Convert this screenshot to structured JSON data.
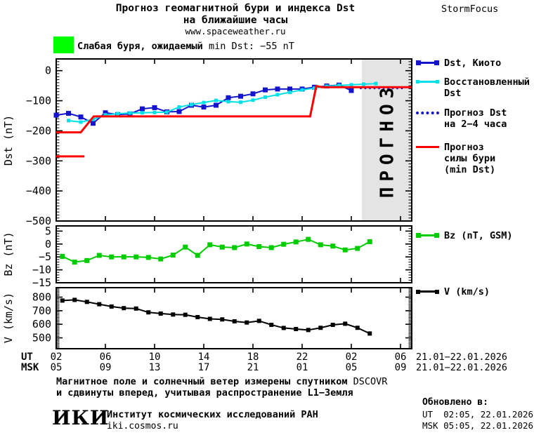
{
  "header": {
    "title_line1": "Прогноз геомагнитной бури и индекса Dst",
    "title_line2": "на ближайшие часы",
    "website": "www.spaceweather.ru",
    "brand": "StormFocus"
  },
  "alert": {
    "box_color": "#00FF00",
    "text_ru": "Слабая буря, ожидаемый ",
    "text_en": "min Dst: −55 nT"
  },
  "legend": {
    "dst_kyoto": "Dst, Киото",
    "restored_line1": "Восстановленный",
    "restored_line2": "Dst",
    "forecast_line1": "Прогноз Dst",
    "forecast_line2": "на 2−4 часа",
    "storm_line1": "Прогноз",
    "storm_line2": "силы бури",
    "storm_line3": "(min Dst)",
    "bz": "Bz (nT, GSM)",
    "v": "V (km/s)"
  },
  "xaxis": {
    "row1_label": "UT",
    "row2_label": "MSK",
    "row1_ticks": [
      "02",
      "06",
      "10",
      "14",
      "18",
      "22",
      "02",
      "06"
    ],
    "row2_ticks": [
      "05",
      "09",
      "13",
      "17",
      "21",
      "01",
      "05",
      "09"
    ],
    "row1_date": "21.01−22.01.2026",
    "row2_date": "21.01−22.01.2026",
    "hours_per_tick": 4
  },
  "chart_data": [
    {
      "type": "line",
      "name": "dst-panel",
      "ylabel": "Dst (nT)",
      "ylim": [
        -500,
        39
      ],
      "yticks": [
        0,
        -100,
        -200,
        -300,
        -400,
        -500
      ],
      "x_unit": "hours since 02:00 UT 21.01.2026",
      "forecast_region": {
        "start_hour": 24.86,
        "end_hour": 28.9,
        "label": "ПРОГНОЗ",
        "fill": "#E4E4E4",
        "text_color": "#C8C8C8"
      },
      "series": [
        {
          "name": "Dst, Киото",
          "color": "#1414CC",
          "marker": "square",
          "marker_size": 7,
          "x": [
            0,
            1,
            2,
            3,
            4,
            5,
            6,
            7,
            8,
            9,
            10,
            11,
            12,
            13,
            14,
            15,
            16,
            17,
            18,
            19,
            20,
            21,
            22,
            23,
            24
          ],
          "y": [
            -148,
            -142,
            -154,
            -175,
            -140,
            -146,
            -144,
            -127,
            -123,
            -137,
            -136,
            -115,
            -121,
            -115,
            -90,
            -85,
            -77,
            -64,
            -61,
            -61,
            -61,
            -55,
            -51,
            -48,
            -66
          ]
        },
        {
          "name": "Восстановленный Dst",
          "color": "#00E0E8",
          "marker": "square",
          "marker_size": 5,
          "x": [
            1,
            2,
            3,
            4,
            5,
            6,
            7,
            8,
            9,
            10,
            11,
            12,
            13,
            14,
            15,
            16,
            17,
            18,
            19,
            20,
            21,
            22,
            23,
            24,
            25,
            26
          ],
          "y": [
            -166,
            -171,
            -162,
            -147,
            -143,
            -141,
            -140,
            -139,
            -138,
            -121,
            -113,
            -106,
            -99,
            -103,
            -105,
            -98,
            -88,
            -80,
            -72,
            -64,
            -58,
            -52,
            -49,
            -47,
            -45,
            -43
          ]
        },
        {
          "name": "Прогноз Dst на 2−4 часа",
          "color": "#1414CC",
          "dotted": true,
          "width": 3,
          "x": [
            24.7,
            28.4
          ],
          "y": [
            -58,
            -58
          ]
        },
        {
          "name": "Прогноз силы бури (min Dst)",
          "color": "#FF0000",
          "width": 3,
          "x": [
            0,
            2,
            3.05,
            20.65,
            21.15,
            21.6,
            28.9
          ],
          "y": [
            -205,
            -205,
            -152,
            -152,
            -51,
            -55,
            -55
          ]
        },
        {
          "name": "Прогноз силы бури (ранний)",
          "color": "#FF0000",
          "width": 3,
          "x": [
            0,
            2.3
          ],
          "y": [
            -285,
            -285
          ]
        }
      ]
    },
    {
      "type": "line",
      "name": "bz-panel",
      "ylabel": "Bz (nT)",
      "ylim": [
        -15,
        7
      ],
      "yticks": [
        5,
        0,
        -5,
        -10,
        -15
      ],
      "series": [
        {
          "name": "Bz (nT, GSM)",
          "color": "#00CC00",
          "marker": "square",
          "marker_size": 7,
          "x": [
            0.5,
            1.5,
            2.5,
            3.5,
            4.5,
            5.5,
            6.5,
            7.5,
            8.5,
            9.5,
            10.5,
            11.5,
            12.5,
            13.5,
            14.5,
            15.5,
            16.5,
            17.5,
            18.5,
            19.5,
            20.5,
            21.5,
            22.5,
            23.5,
            24.5,
            25.5
          ],
          "y": [
            -4.8,
            -7,
            -6.4,
            -4.4,
            -5,
            -5,
            -5,
            -5.2,
            -5.8,
            -4.3,
            -1.2,
            -4.4,
            -0.3,
            -1.2,
            -1.4,
            0,
            -1,
            -1.4,
            -0.1,
            0.8,
            1.8,
            -0.3,
            -0.8,
            -2.3,
            -1.7,
            0.9
          ]
        }
      ]
    },
    {
      "type": "line",
      "name": "v-panel",
      "ylabel": "V (km/s)",
      "ylim": [
        420,
        870
      ],
      "yticks": [
        800,
        700,
        600,
        500
      ],
      "series": [
        {
          "name": "V (km/s)",
          "color": "#000000",
          "marker": "square",
          "marker_size": 6,
          "x": [
            0.5,
            1.5,
            2.5,
            3.5,
            4.5,
            5.5,
            6.5,
            7.5,
            8.5,
            9.5,
            10.5,
            11.5,
            12.5,
            13.5,
            14.5,
            15.5,
            16.5,
            17.5,
            18.5,
            19.5,
            20.5,
            21.5,
            22.5,
            23.5,
            24.5,
            25.5
          ],
          "y": [
            775,
            780,
            765,
            748,
            731,
            719,
            716,
            688,
            679,
            672,
            670,
            653,
            640,
            636,
            622,
            613,
            625,
            596,
            573,
            565,
            558,
            574,
            596,
            604,
            574,
            532
          ]
        }
      ]
    }
  ],
  "footer": {
    "note_line1_a": "Магнитное поле и солнечный ветер измерены спутником ",
    "note_line1_b": "DSCOVR",
    "note_line2": "и сдвинуты вперед, учитывая распространение L1−Земля",
    "updated_label": "Обновлено в:",
    "updated_ut": "UT  02:05, 22.01.2026",
    "updated_msk": "MSK 05:05, 22.01.2026",
    "logo": "ИКИ",
    "institute": "Институт космических исследований РАН",
    "site": "iki.cosmos.ru"
  }
}
